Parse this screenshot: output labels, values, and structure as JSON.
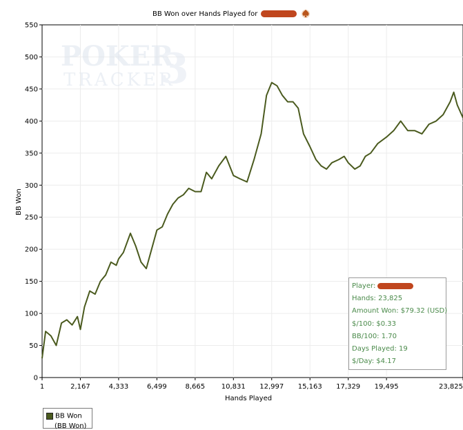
{
  "chart_data": {
    "type": "line",
    "title": "BB Won over Hands Played for",
    "xlabel": "Hands Played",
    "ylabel": "BB Won",
    "xlim": [
      1,
      23825
    ],
    "ylim": [
      0,
      550
    ],
    "x_ticks": [
      "1",
      "2,167",
      "4,333",
      "6,499",
      "8,665",
      "10,831",
      "12,997",
      "15,163",
      "17,329",
      "19,495",
      "23,825"
    ],
    "y_ticks": [
      "0",
      "50",
      "100",
      "150",
      "200",
      "250",
      "300",
      "350",
      "400",
      "450",
      "500",
      "550"
    ],
    "grid": true,
    "series": [
      {
        "name": "BB Won",
        "color": "#4a5a1e",
        "x": [
          1,
          200,
          500,
          800,
          1100,
          1400,
          1700,
          2000,
          2167,
          2400,
          2700,
          3000,
          3300,
          3600,
          3900,
          4200,
          4333,
          4600,
          5000,
          5300,
          5600,
          5900,
          6200,
          6499,
          6800,
          7100,
          7400,
          7700,
          8000,
          8300,
          8665,
          9000,
          9300,
          9600,
          10000,
          10400,
          10831,
          11200,
          11600,
          12000,
          12400,
          12700,
          12997,
          13300,
          13600,
          13900,
          14200,
          14500,
          14800,
          15163,
          15500,
          15800,
          16100,
          16400,
          16800,
          17100,
          17329,
          17700,
          18000,
          18300,
          18600,
          19000,
          19495,
          19900,
          20300,
          20700,
          21100,
          21500,
          21900,
          22300,
          22700,
          23100,
          23300,
          23500,
          23825
        ],
        "y": [
          30,
          72,
          65,
          50,
          85,
          90,
          82,
          95,
          75,
          110,
          135,
          130,
          150,
          160,
          180,
          175,
          185,
          195,
          225,
          205,
          180,
          170,
          200,
          230,
          235,
          255,
          270,
          280,
          285,
          295,
          290,
          290,
          320,
          310,
          330,
          345,
          315,
          310,
          305,
          340,
          380,
          440,
          460,
          455,
          440,
          430,
          430,
          420,
          380,
          360,
          340,
          330,
          325,
          335,
          340,
          345,
          335,
          325,
          330,
          345,
          350,
          365,
          375,
          385,
          400,
          385,
          385,
          380,
          395,
          400,
          410,
          430,
          445,
          425,
          405
        ]
      }
    ]
  },
  "watermark": {
    "line1": "POKER",
    "line2": "TRACKER",
    "digit": "3"
  },
  "stats": {
    "player_label": "Player:",
    "hands": "Hands: 23,825",
    "amount_won": "Amount Won: $79.32 (USD)",
    "per100": "$/100: $0.33",
    "bb100": "BB/100: 1.70",
    "days_played": "Days Played: 19",
    "per_day": "$/Day: $4.17"
  },
  "legend": {
    "label": "BB Won",
    "sub": "(BB Won)"
  }
}
